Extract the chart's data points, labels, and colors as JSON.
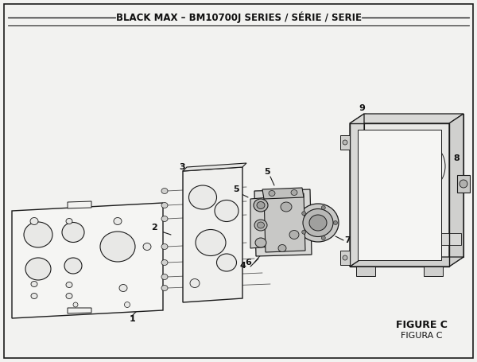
{
  "title": "BLACK MAX – BM10700J SERIES / SÉRIE / SERIE",
  "figure_label": "FIGURE C",
  "figura_label": "FIGURA C",
  "bg_color": "#f2f2f0",
  "line_color": "#1a1a1a",
  "fill_light": "#f0f0ee",
  "fill_mid": "#e0e0dc",
  "fill_dark": "#c8c8c4"
}
